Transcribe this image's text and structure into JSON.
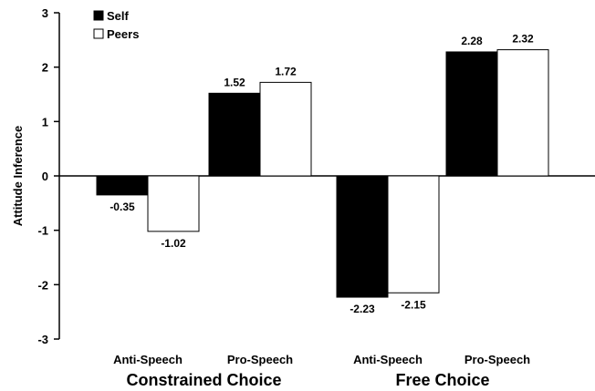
{
  "chart_data": {
    "type": "bar",
    "ylabel": "Attitude Inference",
    "ylim": [
      -3,
      3
    ],
    "yticks": [
      "3",
      "2",
      "1",
      "0",
      "-1",
      "-2",
      "-3"
    ],
    "ytick_values": [
      3,
      2,
      1,
      0,
      -1,
      -2,
      -3
    ],
    "grid": false,
    "legend_position": "top-left",
    "categories": [
      "Anti-Speech",
      "Pro-Speech",
      "Anti-Speech",
      "Pro-Speech"
    ],
    "groups": [
      {
        "label": "Constrained Choice",
        "categories": [
          0,
          1
        ]
      },
      {
        "label": "Free Choice",
        "categories": [
          2,
          3
        ]
      }
    ],
    "series": [
      {
        "name": "Self",
        "color": "#000000",
        "values": [
          -0.35,
          1.52,
          -2.23,
          2.28
        ],
        "labels": [
          "-0.35",
          "1.52",
          "-2.23",
          "2.28"
        ]
      },
      {
        "name": "Peers",
        "color": "#ffffff",
        "values": [
          -1.02,
          1.72,
          -2.15,
          2.32
        ],
        "labels": [
          "-1.02",
          "1.72",
          "-2.15",
          "2.32"
        ]
      }
    ]
  }
}
